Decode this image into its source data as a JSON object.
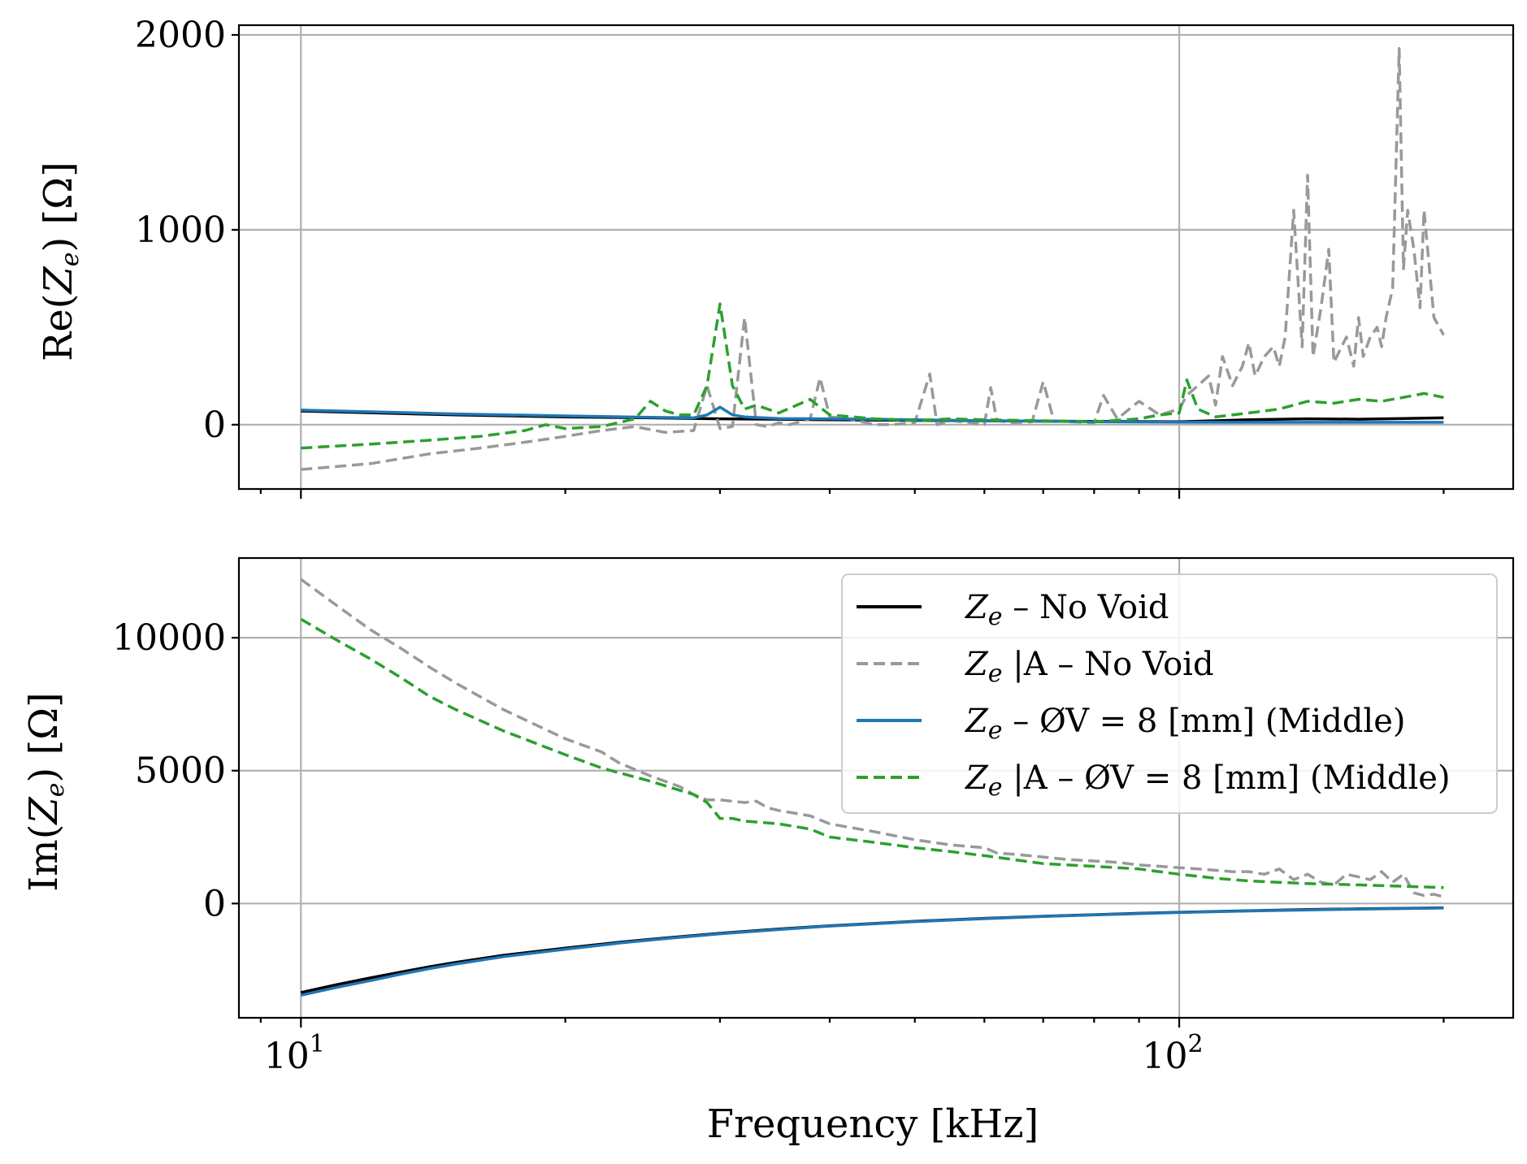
{
  "chart_data": [
    {
      "panel": "top",
      "type": "line",
      "xscale": "log",
      "xlim": [
        8.5,
        240
      ],
      "ylim": [
        -330,
        2050
      ],
      "ylabel_func": "Re",
      "ylabel_main": "Z",
      "ylabel_sub": "e",
      "ylabel_unit": "[Ω]",
      "yticks": [
        0,
        1000,
        2000
      ],
      "ytick_labels": [
        "0",
        "1000",
        "2000"
      ],
      "series": [
        {
          "name": "Ze – No Void",
          "color": "#000000",
          "dash": "",
          "x": [
            10,
            15,
            20,
            25,
            30,
            35,
            40,
            50,
            60,
            70,
            80,
            100,
            120,
            140,
            160,
            180,
            200
          ],
          "y": [
            70,
            50,
            40,
            35,
            30,
            28,
            25,
            22,
            20,
            18,
            17,
            15,
            25,
            30,
            28,
            32,
            35
          ]
        },
        {
          "name": "Ze |A – No Void",
          "color": "#999999",
          "dash": "14,7",
          "x": [
            10,
            12,
            14,
            16,
            18,
            20,
            22,
            24,
            26,
            28,
            29,
            30,
            31,
            32,
            33,
            34,
            35,
            36,
            38,
            39,
            40,
            42,
            45,
            46,
            47,
            50,
            52,
            53,
            55,
            58,
            60,
            61,
            62,
            65,
            68,
            70,
            72,
            75,
            80,
            82,
            85,
            90,
            95,
            100,
            102,
            105,
            108,
            110,
            112,
            115,
            118,
            120,
            122,
            125,
            128,
            130,
            132,
            135,
            138,
            140,
            142,
            145,
            148,
            150,
            155,
            158,
            160,
            162,
            165,
            168,
            170,
            172,
            175,
            178,
            180,
            182,
            185,
            188,
            190,
            195,
            200
          ],
          "y": [
            -230,
            -200,
            -150,
            -120,
            -90,
            -60,
            -30,
            -10,
            -40,
            -30,
            200,
            -20,
            -10,
            550,
            0,
            -10,
            10,
            0,
            30,
            240,
            40,
            30,
            0,
            0,
            0,
            10,
            260,
            0,
            20,
            10,
            0,
            190,
            20,
            10,
            15,
            220,
            20,
            15,
            10,
            150,
            30,
            120,
            50,
            80,
            150,
            200,
            250,
            100,
            350,
            200,
            300,
            420,
            250,
            350,
            400,
            300,
            450,
            1100,
            400,
            1280,
            350,
            600,
            900,
            320,
            450,
            300,
            550,
            350,
            450,
            500,
            400,
            550,
            700,
            1930,
            800,
            1100,
            900,
            600,
            1100,
            550,
            460
          ]
        },
        {
          "name": "Ze – ØV = 8 [mm] (Middle)",
          "color": "#1f77b4",
          "dash": "",
          "x": [
            10,
            15,
            20,
            25,
            28,
            29,
            30,
            31,
            32,
            35,
            40,
            45,
            50,
            60,
            70,
            80,
            100,
            120,
            140,
            160,
            180,
            200
          ],
          "y": [
            75,
            55,
            45,
            38,
            35,
            50,
            90,
            50,
            40,
            32,
            30,
            28,
            25,
            20,
            18,
            15,
            13,
            12,
            12,
            12,
            12,
            12
          ]
        },
        {
          "name": "Ze |A – ØV = 8 [mm] (Middle)",
          "color": "#2ca02c",
          "dash": "14,7",
          "x": [
            10,
            12,
            14,
            16,
            18,
            19,
            20,
            22,
            24,
            25,
            26,
            27,
            28,
            29,
            30,
            31,
            32,
            33,
            35,
            38,
            40,
            45,
            50,
            55,
            60,
            70,
            80,
            90,
            95,
            100,
            102,
            105,
            110,
            115,
            120,
            130,
            140,
            150,
            160,
            170,
            180,
            190,
            200
          ],
          "y": [
            -120,
            -100,
            -80,
            -60,
            -30,
            0,
            -20,
            -10,
            30,
            120,
            70,
            50,
            50,
            200,
            620,
            200,
            80,
            100,
            60,
            130,
            50,
            30,
            20,
            30,
            25,
            20,
            15,
            30,
            50,
            60,
            230,
            80,
            40,
            50,
            60,
            80,
            120,
            110,
            130,
            120,
            140,
            160,
            140
          ]
        }
      ]
    },
    {
      "panel": "bottom",
      "type": "line",
      "xscale": "log",
      "xlim": [
        8.5,
        240
      ],
      "ylim": [
        -4300,
        13000
      ],
      "ylabel_func": "Im",
      "ylabel_main": "Z",
      "ylabel_sub": "e",
      "ylabel_unit": "[Ω]",
      "yticks": [
        0,
        5000,
        10000
      ],
      "ytick_labels": [
        "0",
        "5000",
        "10000"
      ],
      "xticks_major": [
        10,
        100
      ],
      "xtick_label_base": "10",
      "xtick_label_exps": [
        "1",
        "2"
      ],
      "xlabel": "Frequency [kHz]",
      "legend": {
        "position": "upper right",
        "entries": [
          {
            "main": "Z",
            "sub": "e",
            "mid": "",
            "tail": " – No Void",
            "color": "#000000",
            "dash": ""
          },
          {
            "main": "Z",
            "sub": "e",
            "mid": " |A",
            "tail": " – No Void",
            "color": "#999999",
            "dash": "14,7"
          },
          {
            "main": "Z",
            "sub": "e",
            "mid": "",
            "tail": " – ØV = 8 [mm] (Middle)",
            "color": "#1f77b4",
            "dash": ""
          },
          {
            "main": "Z",
            "sub": "e",
            "mid": " |A",
            "tail": " – ØV = 8 [mm] (Middle)",
            "color": "#2ca02c",
            "dash": "14,7"
          }
        ]
      },
      "series": [
        {
          "name": "Ze – No Void",
          "color": "#000000",
          "dash": "",
          "x": [
            10,
            11,
            12,
            13,
            14,
            15,
            17,
            20,
            23,
            26,
            30,
            35,
            40,
            45,
            50,
            60,
            70,
            80,
            90,
            100,
            120,
            140,
            160,
            180,
            200
          ],
          "y": [
            -3350,
            -3050,
            -2800,
            -2580,
            -2380,
            -2220,
            -1950,
            -1680,
            -1460,
            -1300,
            -1120,
            -960,
            -840,
            -750,
            -670,
            -560,
            -480,
            -420,
            -370,
            -330,
            -270,
            -230,
            -200,
            -180,
            -160
          ]
        },
        {
          "name": "Ze |A – No Void",
          "color": "#999999",
          "dash": "14,7",
          "x": [
            10,
            11,
            12,
            13,
            14,
            15,
            17,
            20,
            22,
            23,
            25,
            27,
            28,
            29,
            30,
            31,
            32,
            33,
            34,
            35,
            38,
            40,
            45,
            50,
            55,
            60,
            62,
            65,
            70,
            75,
            80,
            85,
            90,
            95,
            100,
            105,
            110,
            115,
            120,
            125,
            130,
            135,
            140,
            145,
            150,
            155,
            160,
            165,
            170,
            175,
            180,
            185,
            190,
            195,
            200
          ],
          "y": [
            12200,
            11200,
            10300,
            9600,
            8900,
            8300,
            7300,
            6200,
            5700,
            5300,
            4800,
            4400,
            4100,
            3900,
            3900,
            3850,
            3800,
            3850,
            3600,
            3500,
            3300,
            3000,
            2700,
            2400,
            2200,
            2100,
            1900,
            1850,
            1750,
            1650,
            1600,
            1550,
            1450,
            1400,
            1350,
            1300,
            1250,
            1200,
            1200,
            1100,
            1300,
            900,
            1100,
            800,
            700,
            1100,
            1000,
            900,
            1200,
            800,
            1100,
            400,
            300,
            350,
            250
          ]
        },
        {
          "name": "Ze – ØV = 8 [mm] (Middle)",
          "color": "#1f77b4",
          "dash": "",
          "x": [
            10,
            11,
            12,
            13,
            14,
            15,
            17,
            20,
            23,
            26,
            30,
            35,
            40,
            45,
            50,
            60,
            70,
            80,
            90,
            100,
            120,
            140,
            160,
            180,
            200
          ],
          "y": [
            -3450,
            -3150,
            -2900,
            -2660,
            -2450,
            -2280,
            -2000,
            -1720,
            -1490,
            -1320,
            -1140,
            -980,
            -850,
            -760,
            -680,
            -570,
            -490,
            -430,
            -380,
            -340,
            -280,
            -240,
            -210,
            -190,
            -170
          ]
        },
        {
          "name": "Ze |A – ØV = 8 [mm] (Middle)",
          "color": "#2ca02c",
          "dash": "14,7",
          "x": [
            10,
            11,
            12,
            13,
            14,
            15,
            17,
            20,
            22,
            25,
            28,
            29,
            30,
            31,
            32,
            35,
            38,
            40,
            45,
            50,
            55,
            60,
            70,
            80,
            90,
            100,
            110,
            120,
            140,
            160,
            180,
            200
          ],
          "y": [
            10700,
            9900,
            9200,
            8500,
            7800,
            7300,
            6500,
            5600,
            5100,
            4600,
            4100,
            3800,
            3200,
            3200,
            3100,
            3000,
            2800,
            2500,
            2300,
            2100,
            1950,
            1800,
            1500,
            1400,
            1300,
            1100,
            950,
            850,
            750,
            700,
            650,
            600
          ]
        }
      ]
    }
  ]
}
